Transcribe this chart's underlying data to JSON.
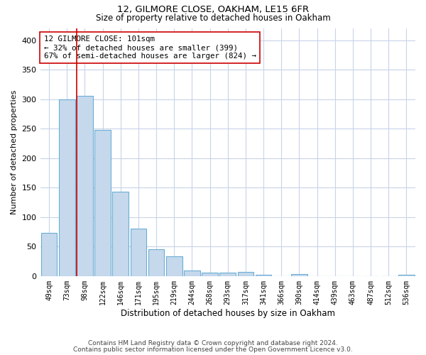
{
  "title": "12, GILMORE CLOSE, OAKHAM, LE15 6FR",
  "subtitle": "Size of property relative to detached houses in Oakham",
  "xlabel": "Distribution of detached houses by size in Oakham",
  "ylabel": "Number of detached properties",
  "categories": [
    "49sqm",
    "73sqm",
    "98sqm",
    "122sqm",
    "146sqm",
    "171sqm",
    "195sqm",
    "219sqm",
    "244sqm",
    "268sqm",
    "293sqm",
    "317sqm",
    "341sqm",
    "366sqm",
    "390sqm",
    "414sqm",
    "439sqm",
    "463sqm",
    "487sqm",
    "512sqm",
    "536sqm"
  ],
  "values": [
    73,
    300,
    306,
    248,
    143,
    81,
    46,
    33,
    9,
    6,
    6,
    7,
    2,
    0,
    4,
    0,
    0,
    0,
    0,
    0,
    2
  ],
  "bar_color": "#c5d8ec",
  "bar_edge_color": "#6aaed6",
  "vline_color": "#cc0000",
  "annotation_text": "12 GILMORE CLOSE: 101sqm\n← 32% of detached houses are smaller (399)\n67% of semi-detached houses are larger (824) →",
  "annotation_box_color": "#ffffff",
  "annotation_box_edge": "#cc0000",
  "ylim": [
    0,
    420
  ],
  "yticks": [
    0,
    50,
    100,
    150,
    200,
    250,
    300,
    350,
    400
  ],
  "bg_color": "#ffffff",
  "grid_color": "#c8d4e8",
  "footer_line1": "Contains HM Land Registry data © Crown copyright and database right 2024.",
  "footer_line2": "Contains public sector information licensed under the Open Government Licence v3.0."
}
